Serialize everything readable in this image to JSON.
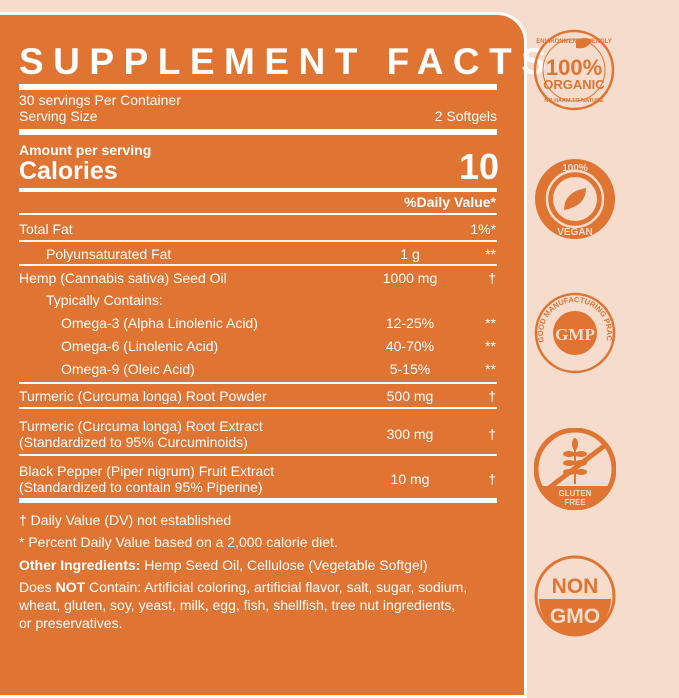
{
  "title": "SUPPLEMENT FACTS",
  "servings_per_container": "30 servings Per Container",
  "serving_size_label": "Serving Size",
  "serving_size_value": "2 Softgels",
  "amount_per_serving": "Amount per serving",
  "calories_label": "Calories",
  "calories_value": "10",
  "daily_value_header": "%Daily Value*",
  "rows": [
    {
      "name": "Total Fat",
      "amount": "",
      "dv": "1%*"
    },
    {
      "name": "Polyunsaturated Fat",
      "amount": "1 g",
      "dv": "**"
    },
    {
      "name": "Hemp (Cannabis sativa) Seed Oil",
      "amount": "1000 mg",
      "dv": "†"
    },
    {
      "name": "Typically Contains:",
      "amount": "",
      "dv": ""
    },
    {
      "name": "Omega-3 (Alpha Linolenic Acid)",
      "amount": "12-25%",
      "dv": "**"
    },
    {
      "name": "Omega-6 (Linolenic Acid)",
      "amount": "40-70%",
      "dv": "**"
    },
    {
      "name": "Omega-9 (Oleic Acid)",
      "amount": "5-15%",
      "dv": "**"
    },
    {
      "name": "Turmeric (Curcuma longa) Root Powder",
      "amount": "500 mg",
      "dv": "†"
    },
    {
      "name": "Turmeric (Curcuma longa) Root Extract",
      "name2": "(Standardized to 95% Curcuminoids)",
      "amount": "300 mg",
      "dv": "†"
    },
    {
      "name": "Black Pepper (Piper nigrum) Fruit Extract",
      "name2": "(Standardized to contain 95% Piperine)",
      "amount": "10 mg",
      "dv": "†"
    }
  ],
  "footnotes": [
    "† Daily Value (DV) not established",
    "* Percent Daily Value based on a 2,000 calorie diet."
  ],
  "other_ingredients_label": "Other Ingredients:",
  "other_ingredients": " Hemp Seed Oil, Cellulose (Vegetable Softgel)",
  "does_not_label_1": "Does ",
  "does_not_label_2": "NOT",
  "does_not_text": [
    " Contain: Artificial coloring, artificial flavor, salt, sugar, sodium,",
    "wheat, gluten, soy, yeast, milk, egg, fish, shellfish, tree nut ingredients,",
    "or preservatives."
  ],
  "badges": {
    "organic": {
      "top": "ENVIRONMENT FRIENDLY",
      "main1": "100%",
      "main2": "ORGANIC",
      "bottom": "NO HARM TO NATURE"
    },
    "vegan": {
      "top": "100%",
      "bottom": "VEGAN"
    },
    "gmp": {
      "ring": "GOOD MANUFACTURING PRACTICE",
      "main": "GMP"
    },
    "gluten": {
      "line1": "GLUTEN",
      "line2": "FREE"
    },
    "nongmo": {
      "line1": "NON",
      "line2": "GMO"
    }
  },
  "colors": {
    "orange": "#e07433",
    "background": "#f5dccc"
  }
}
